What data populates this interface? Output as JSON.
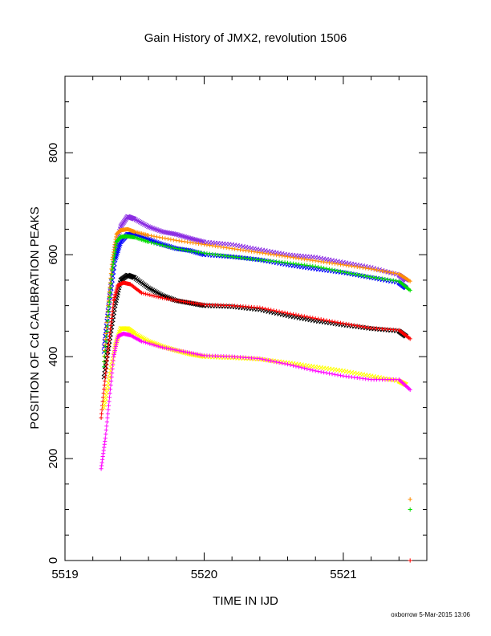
{
  "chart_data": {
    "type": "scatter",
    "title": "Gain History of JMX2, revolution 1506",
    "xlabel": "TIME IN IJD",
    "ylabel": "POSITION OF Cd CALIBRATION PEAKS",
    "xlim": [
      5519.0,
      5521.6
    ],
    "ylim": [
      0,
      950
    ],
    "x_ticks": [
      "5519",
      "5520",
      "5521"
    ],
    "y_ticks": [
      "0",
      "200",
      "400",
      "600",
      "800"
    ],
    "grid": false,
    "legend": "none",
    "series": [
      {
        "color": "#8a2be2",
        "marker": "x",
        "x": [
          5519.28,
          5519.32,
          5519.36,
          5519.4,
          5519.45,
          5519.5,
          5519.6,
          5519.7,
          5519.8,
          5519.9,
          5520.0,
          5520.2,
          5520.4,
          5520.6,
          5520.8,
          5521.0,
          5521.2,
          5521.4,
          5521.45
        ],
        "y": [
          420,
          520,
          610,
          655,
          675,
          670,
          655,
          645,
          640,
          632,
          625,
          620,
          610,
          600,
          595,
          585,
          575,
          560,
          550
        ]
      },
      {
        "color": "#0000ff",
        "marker": "x",
        "x": [
          5519.28,
          5519.32,
          5519.36,
          5519.4,
          5519.45,
          5519.5,
          5519.6,
          5519.7,
          5519.8,
          5519.9,
          5520.0,
          5520.2,
          5520.4,
          5520.6,
          5520.8,
          5521.0,
          5521.2,
          5521.4,
          5521.45
        ],
        "y": [
          410,
          510,
          590,
          625,
          640,
          640,
          630,
          620,
          612,
          608,
          600,
          596,
          590,
          580,
          572,
          565,
          555,
          545,
          535
        ]
      },
      {
        "color": "#ff8c00",
        "marker": "+",
        "x": [
          5519.28,
          5519.31,
          5519.34,
          5519.37,
          5519.4,
          5519.45,
          5519.5,
          5519.6,
          5519.8,
          5520.0,
          5520.2,
          5520.4,
          5520.6,
          5520.8,
          5521.0,
          5521.2,
          5521.4,
          5521.48
        ],
        "y": [
          390,
          500,
          590,
          640,
          648,
          650,
          645,
          638,
          628,
          620,
          612,
          604,
          596,
          588,
          580,
          572,
          562,
          548
        ]
      },
      {
        "color": "#00dd00",
        "marker": "+",
        "x": [
          5519.28,
          5519.31,
          5519.34,
          5519.37,
          5519.4,
          5519.45,
          5519.5,
          5519.6,
          5519.8,
          5520.0,
          5520.2,
          5520.4,
          5520.6,
          5520.8,
          5521.0,
          5521.2,
          5521.4,
          5521.48
        ],
        "y": [
          380,
          480,
          570,
          625,
          635,
          636,
          634,
          625,
          612,
          603,
          596,
          590,
          584,
          577,
          566,
          556,
          548,
          530
        ]
      },
      {
        "color": "#000000",
        "marker": "x",
        "x": [
          5519.28,
          5519.32,
          5519.36,
          5519.4,
          5519.45,
          5519.5,
          5519.6,
          5519.7,
          5519.8,
          5519.9,
          5520.0,
          5520.2,
          5520.4,
          5520.6,
          5520.8,
          5521.0,
          5521.2,
          5521.4,
          5521.45
        ],
        "y": [
          360,
          430,
          500,
          550,
          560,
          555,
          535,
          520,
          510,
          505,
          500,
          498,
          492,
          480,
          470,
          462,
          455,
          450,
          440
        ]
      },
      {
        "color": "#ff0000",
        "marker": "+",
        "x": [
          5519.26,
          5519.29,
          5519.32,
          5519.35,
          5519.38,
          5519.42,
          5519.47,
          5519.55,
          5519.7,
          5519.85,
          5520.0,
          5520.2,
          5520.4,
          5520.6,
          5520.8,
          5521.0,
          5521.2,
          5521.4,
          5521.48
        ],
        "y": [
          280,
          360,
          440,
          510,
          540,
          545,
          542,
          525,
          515,
          508,
          502,
          500,
          496,
          485,
          475,
          465,
          456,
          452,
          435
        ]
      },
      {
        "color": "#ffff00",
        "marker": "x",
        "x": [
          5519.28,
          5519.32,
          5519.36,
          5519.4,
          5519.45,
          5519.5,
          5519.6,
          5519.7,
          5519.8,
          5519.9,
          5520.0,
          5520.2,
          5520.4,
          5520.6,
          5520.8,
          5521.0,
          5521.2,
          5521.4,
          5521.45
        ],
        "y": [
          300,
          360,
          420,
          455,
          455,
          445,
          430,
          420,
          412,
          405,
          400,
          398,
          395,
          388,
          380,
          372,
          362,
          352,
          345
        ]
      },
      {
        "color": "#ff00ff",
        "marker": "+",
        "x": [
          5519.26,
          5519.29,
          5519.32,
          5519.35,
          5519.38,
          5519.42,
          5519.47,
          5519.55,
          5519.7,
          5519.85,
          5520.0,
          5520.2,
          5520.4,
          5520.6,
          5520.8,
          5521.0,
          5521.2,
          5521.4,
          5521.48
        ],
        "y": [
          180,
          240,
          320,
          400,
          440,
          445,
          442,
          430,
          418,
          410,
          402,
          400,
          396,
          385,
          372,
          362,
          355,
          355,
          335
        ]
      }
    ],
    "outliers": [
      {
        "color": "#ff8c00",
        "marker": "+",
        "x": 5521.48,
        "y": 120
      },
      {
        "color": "#00dd00",
        "marker": "+",
        "x": 5521.48,
        "y": 100
      },
      {
        "color": "#ff0000",
        "marker": "+",
        "x": 5521.48,
        "y": 0
      }
    ]
  },
  "footer": {
    "credit": "oxborrow  5-Mar-2015 13:06"
  }
}
